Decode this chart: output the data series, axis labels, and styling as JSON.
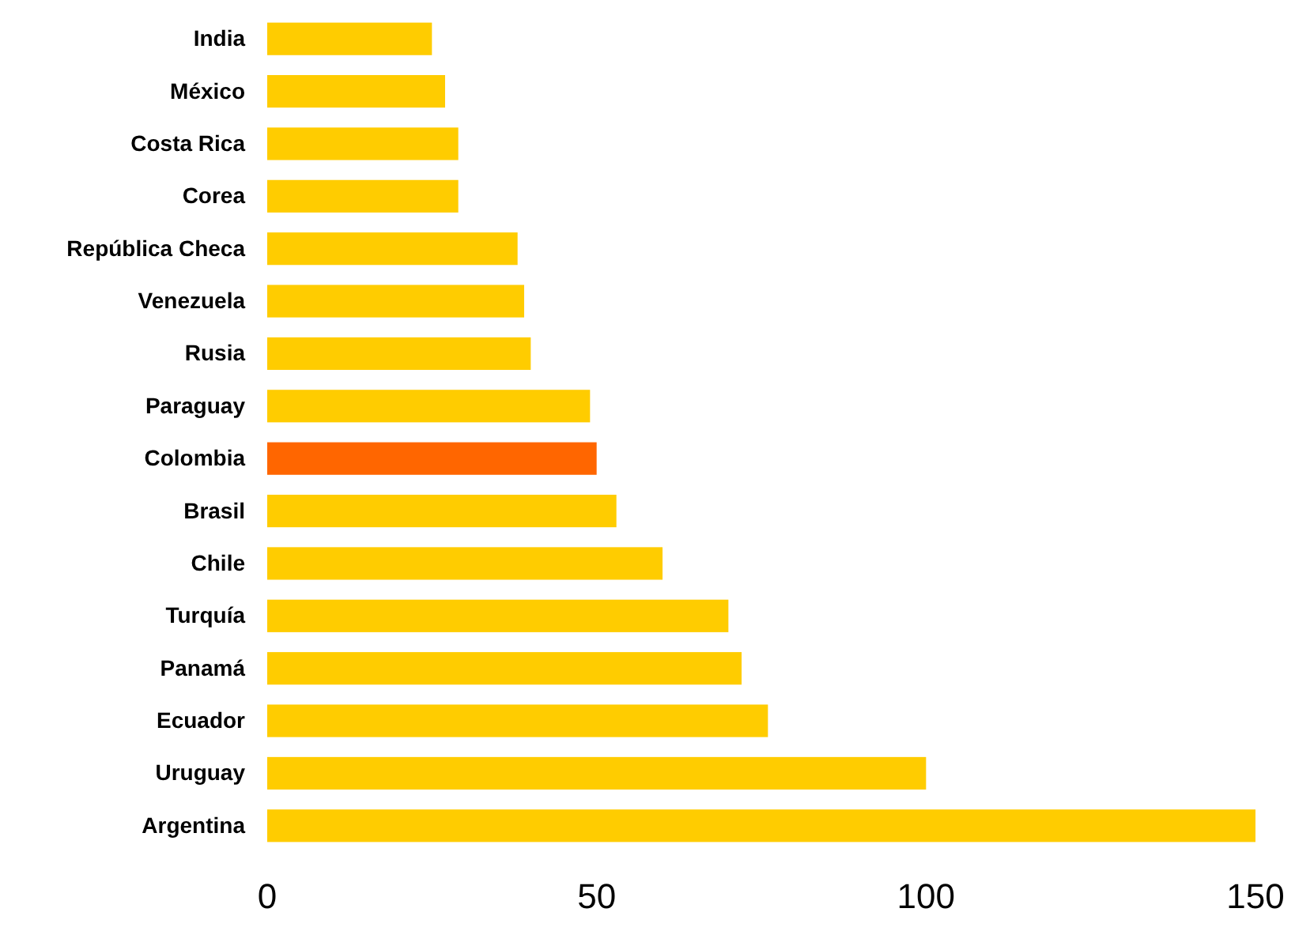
{
  "chart_data": {
    "type": "bar",
    "orientation": "horizontal",
    "categories": [
      "India",
      "México",
      "Costa Rica",
      "Corea",
      "República Checa",
      "Venezuela",
      "Rusia",
      "Paraguay",
      "Colombia",
      "Brasil",
      "Chile",
      "Turquía",
      "Panamá",
      "Ecuador",
      "Uruguay",
      "Argentina"
    ],
    "values": [
      25,
      27,
      29,
      29,
      38,
      39,
      40,
      49,
      50,
      53,
      60,
      70,
      72,
      76,
      100,
      150
    ],
    "colors": [
      "#ffcc00",
      "#ffcc00",
      "#ffcc00",
      "#ffcc00",
      "#ffcc00",
      "#ffcc00",
      "#ffcc00",
      "#ffcc00",
      "#ff6600",
      "#ffcc00",
      "#ffcc00",
      "#ffcc00",
      "#ffcc00",
      "#ffcc00",
      "#ffcc00",
      "#ffcc00"
    ],
    "xlim": [
      0,
      150
    ],
    "xticks": [
      0,
      50,
      100,
      150
    ],
    "grid": false
  }
}
